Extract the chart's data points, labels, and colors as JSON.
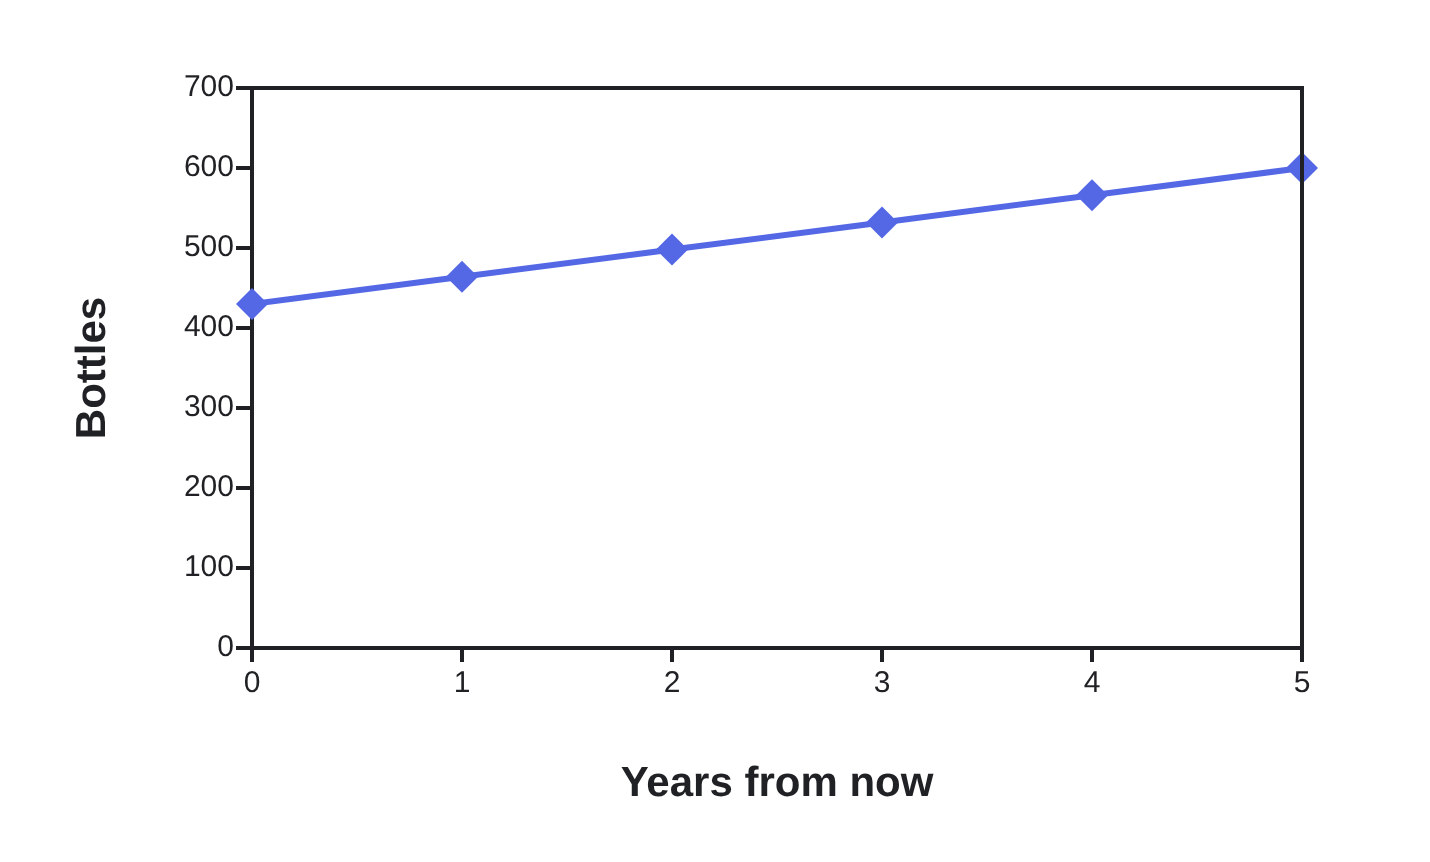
{
  "chart_data": {
    "type": "line",
    "xlabel": "Years from now",
    "ylabel": "Bottles",
    "x": [
      0,
      1,
      2,
      3,
      4,
      5
    ],
    "series": [
      {
        "color": "#5468e6",
        "values": [
          430,
          464,
          498,
          532,
          566,
          600
        ]
      }
    ],
    "xlim": [
      0,
      5
    ],
    "xticks": [
      0,
      1,
      2,
      3,
      4,
      5
    ],
    "ylim": [
      0,
      700
    ],
    "yticks": [
      0,
      100,
      200,
      300,
      400,
      500,
      600,
      700
    ],
    "marker": "diamond",
    "line_style": "solid"
  }
}
